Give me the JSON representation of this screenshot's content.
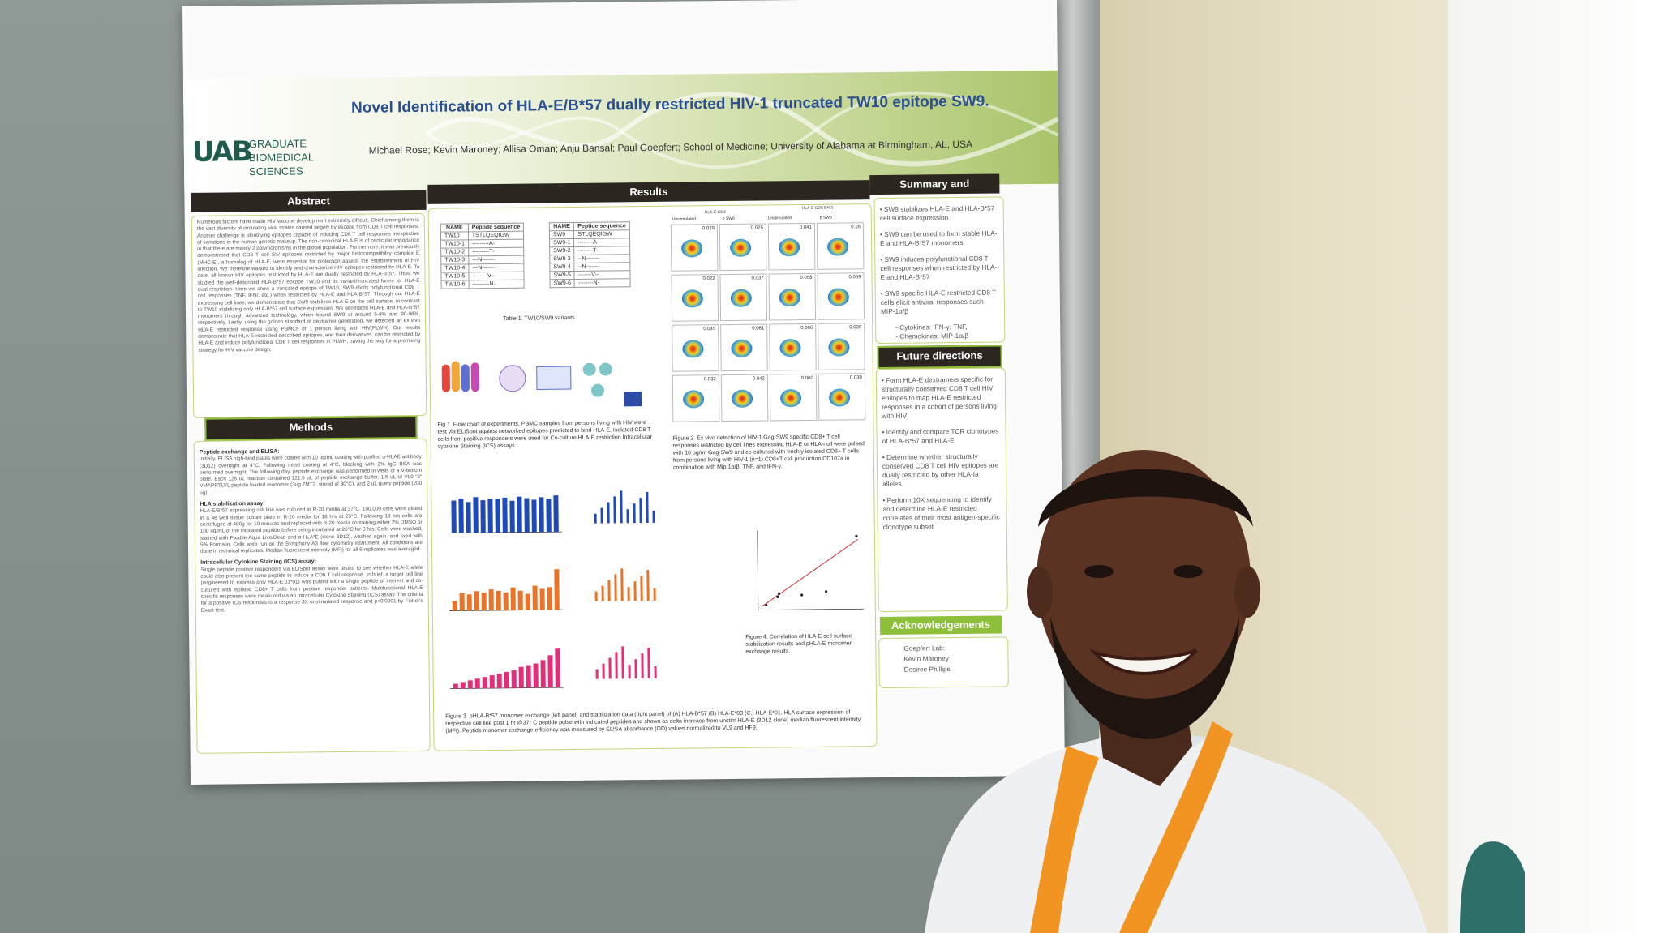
{
  "poster": {
    "title": "Novel Identification of HLA-E/B*57 dually restricted HIV-1 truncated TW10 epitope SW9.",
    "authors": "Michael Rose; Kevin Maroney; Allisa Oman; Anju Bansal; Paul Goepfert; School of Medicine; University of Alabama at Birmingham, AL, USA",
    "logo": {
      "mark": "UAB",
      "line1": "GRADUATE",
      "line2": "BIOMEDICAL SCIENCES"
    },
    "headers": {
      "abstract": "Abstract",
      "results": "Results",
      "summary": "Summary and Conclusion",
      "methods": "Methods",
      "future": "Future directions",
      "acknowledgements": "Acknowledgements"
    },
    "abstract_text": "Numerous factors have made HIV vaccine development extremely difficult. Chief among them is the vast diversity of circulating viral strains caused largely by escape from CD8 T cell responses. Another challenge is identifying epitopes capable of inducing CD8 T cell responses irrespective of variations in the human genetic makeup. The non-canonical HLA-E is of particular importance in that there are mainly 2 polymorphisms in the global population. Furthermore, it was previously demonstrated that CD8 T cell SIV epitopes restricted by major histocompatibility complex E (MHC-E), a homolog of HLA-E, were essential for protection against the establishment of HIV infection. We therefore wanted to identify and characterize HIV epitopes restricted by HLA-E. To date, all known HIV epitopes restricted by HLA-E are dually restricted by HLA-B*57. Thus, we studied the well-described HLA-B*57 epitope TW10 and its variant/truncated forms for HLA-E dual restriction. Here we show a truncated epitope of TW10, SW9 elicits polyfunctional CD8 T cell responses (TNF, IFNr, etc.) when restricted by HLA-E and HLA-B*57. Through our HLA-E expressing cell lines, we demonstrate that SW9 stabilizes HLA-E on the cell surface, in contrast to TW10 stabilizing only HLA-B*57 cell surface expression. We generated HLA-E and HLA-B*57 monomers through advanced technology, which bound SW9 at around 5-8% and 90-98%, respectively. Lastly, using the golden standard of dextramer generation, we detected an ex vivo HLA-E restricted response using PBMCs of 1 person living with HIV(PLWH). Our results demonstrate that HLA-E-restricted described epitopes, and their derivatives, can be restricted by HLA-E and induce polyfunctional CD8 T cell responses in PLWH, paving the way for a promising strategy for HIV vaccine design.",
    "methods": [
      {
        "head": "Peptide exchange and ELISA:",
        "text": "Initially, ELISA high-bind plates were coated with 10 ug/mL coating with purified α-HLAE antibody (3D12) overnight at 4°C. Following initial coating at 4°C, blocking with 2% IgG BSA was performed overnight. The following day, peptide exchange was performed in wells of a V-bottom plate. Each 125 uL reaction contained 121.5 uL of peptide exchange buffer, 1.5 uL of VL9 \"J\" VMAPRTLVL peptide loaded monomer (3ug 7MT2, stored at 80°C), and 2 uL query peptide (200 ug)."
      },
      {
        "head": "HLA stabilization assay:",
        "text": "HLA-E/B*57 expressing cell line was cultured in R-20 media at 37°C. 100,000 cells were plated in a 48 well tissue culture plate in R-20 media for 18 hrs at 26°C. Following 18 hrs cells are centrifuged at 400g for 10 minutes and replaced with R-20 media containing either 2% DMSO or 100 ug/mL of the indicated peptide before being incubated at 26°C for 3 hrs. Cells were washed, stained with Fixable Aqua Live/Dead and α-HLA*E (clone 3D12), washed again, and fixed with 5% Formalin. Cells were run on the Symphony A3 flow cytometry instrument. All conditions are done in technical replicates. Median fluorescent intensity (MFI) for all 6 replicates was averaged."
      },
      {
        "head": "Intracellular Cytokine Staining (ICS) assay:",
        "text": "Single peptide positive responders via ELISpot assay were tested to see whether HLA-E allele could also present the same peptide to induce a CD8 T cell response. In brief, a target cell line (engineered to express only HLA-E:01*01) was pulsed with a single peptide of interest and co-cultured with isolated CD8+ T cells from positive responder patients. Multifunctional HLA-E specific responses were measured via an Intracellular Cytokine Staining (ICS) assay. The criteria for a positive ICS responses is a response 3X unstimulated response and p<0.0001 by Fisher's Exact test."
      }
    ],
    "table1": {
      "headers": [
        "NAME",
        "Peptide sequence"
      ],
      "rows": [
        [
          "TW10",
          "TSTLQEQIGW"
        ],
        [
          "TW10-1",
          "---------A-"
        ],
        [
          "TW10-2",
          "---------T-"
        ],
        [
          "TW10-3",
          "---N-------"
        ],
        [
          "TW10-4",
          "---N-------"
        ],
        [
          "TW10-5",
          "--------V--"
        ],
        [
          "TW10-6",
          "---------N-"
        ]
      ]
    },
    "table2": {
      "headers": [
        "NAME",
        "Peptide sequence"
      ],
      "rows": [
        [
          "SW9",
          "STLQEQIGW"
        ],
        [
          "SW9-1",
          "--------A-"
        ],
        [
          "SW9-2",
          "--------T-"
        ],
        [
          "SW9-3",
          "--N-------"
        ],
        [
          "SW9-4",
          "--N-------"
        ],
        [
          "SW9-5",
          "-------V--"
        ],
        [
          "SW9-6",
          "--------N-"
        ]
      ]
    },
    "table_caption": "Table 1. TW10/SW9 variants",
    "fig1_caption": "Fig 1. Flow chart of experiments. PBMC samples from persons living with HIV were test via ELISpot against networked epitopes predicted to bind HLA-E. Isolated CD8 T cells from positive responders were used for Co-culture HLA-E restriction Intracellular cytokine Staining (ICS) assays.",
    "fig2_caption": "Figure 2. Ex vivo detection of HIV-1 Gag-SW9 specific CD8+ T cell responses restricted by cell lines expressing HLA-E or HLA-null were pulsed with 10 ug/ml Gag-SW9 and co-cultured with freshly isolated CD8+ T cells from persons living with HIV-1 (n=1).CD8+T cell production CD107a in combination with Mip-1α/β, TNF, and IFN-γ.",
    "fig3_caption": "Figure 3. pHLA-B*57 monomer exchange (left panel) and stabilization data (right panel) of (A) HLA-B*57 (B) HLA-E*03 (C.) HLA-E*01. HLA surface expression of respective cell line post 1 hr @37° C peptide pulse with indicated peptides and shown as delta increase from unstim HLA-E (3D12 clone) median fluorescent intensity (MFI). Peptide monomer exchange efficiency was measured by ELISA absorbance (OD) values normalized to VL9 and HF9.",
    "fig4_caption": "Figure 4. Correlation of HLA-E cell surface stabilization results and pHLA-E monomer exchange results.",
    "fig2_col_labels": [
      "Unstimulated",
      "p SW9",
      "Unstimulated",
      "p SW9"
    ],
    "fig2_group_labels": [
      "HLA-E CD4",
      "HLA-E CD8 E*03"
    ],
    "fig2_panel_values": [
      "0.029",
      "0.025",
      "0.041",
      "0.16",
      "0.022",
      "0.037",
      "0.058",
      "0.059",
      "0.045",
      "0.061",
      "0.066",
      "0.039",
      "0.032",
      "0.042",
      "0.060",
      "0.039"
    ],
    "summary": [
      "SW9 stabilizes HLA-E and HLA-B*57 cell surface expression",
      "SW9 can be used to form stable HLA-E and HLA-B*57 monomers",
      "SW9 induces polyfunctional CD8 T cell responses when restricted by HLA-E and HLA-B*57",
      "SW9 specific HLA-E restricted CD8 T cells elicit antiviral responses such MIP-1α/β",
      "Cytokines: IFN-γ, TNF,",
      "Chemokines: MIP-1α/β"
    ],
    "future": [
      "Form HLA-E dextramers specific for structurally conserved CD8 T cell HIV epitopes to map HLA-E restricted responses in a cohort of persons living with HIV",
      "Identify and compare TCR clonotypes of HLA-B*57 and HLA-E",
      "Determine whether structurally conserved CD8 T cell HIV epitopes are dually restricted by other HLA-Ia alleles.",
      "Perform 10X sequencing to identify and determine HLA-E restricted correlates of their most antigen-specific clonotype subset"
    ],
    "acknowledgements": [
      "Goepfert Lab:",
      "Kevin Maroney",
      "Desiree Phillips"
    ]
  },
  "colors": {
    "wall": "#8c9590",
    "poster_bg": "#fbfbfb",
    "title": "#2b4f90",
    "header_dark": "#2c2620",
    "accent_green": "#8dbf3a",
    "uab_green": "#1f5c4e",
    "lanyard": "#f29422",
    "bar_blue": "#1f49b5",
    "bar_orange": "#e8742a",
    "bar_pink": "#e0307a"
  }
}
